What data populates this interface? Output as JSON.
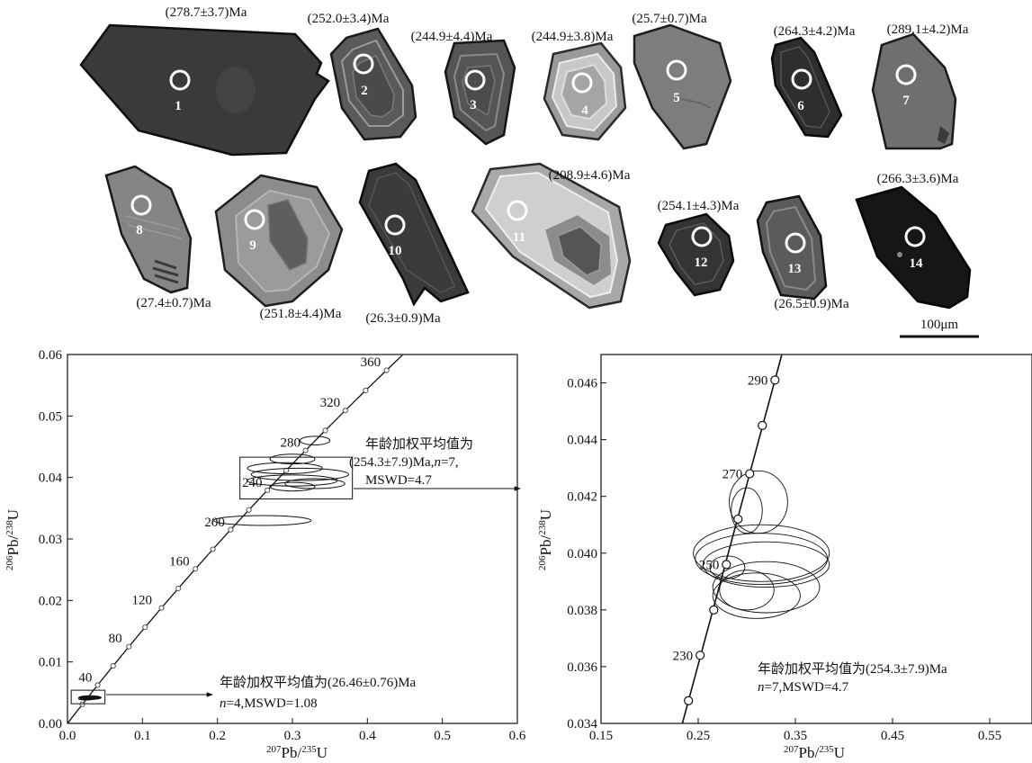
{
  "panel_a": {
    "grains": [
      {
        "num": "1",
        "age": "(278.7±3.7)Ma",
        "fill": "#3a3a3a",
        "spot": "dark"
      },
      {
        "num": "2",
        "age": "(252.0±3.4)Ma",
        "fill": "#5a5a5a",
        "spot": "mid"
      },
      {
        "num": "3",
        "age": "(244.9±4.4)Ma",
        "fill": "#555555",
        "spot": "mid"
      },
      {
        "num": "4",
        "age": "(244.9±3.8)Ma",
        "fill": "#9a9a9a",
        "spot": "bright"
      },
      {
        "num": "5",
        "age": "(25.7±0.7)Ma",
        "fill": "#7d7d7d",
        "spot": "mid"
      },
      {
        "num": "6",
        "age": "(264.3±4.2)Ma",
        "fill": "#2e2e2e",
        "spot": "dark"
      },
      {
        "num": "7",
        "age": "(289.1±4.2)Ma",
        "fill": "#6f6f6f",
        "spot": "mid"
      },
      {
        "num": "8",
        "age": "(27.4±0.7)Ma",
        "fill": "#858585",
        "spot": "mid"
      },
      {
        "num": "9",
        "age": "(251.8±4.4)Ma",
        "fill": "#8c8c8c",
        "spot": "mid"
      },
      {
        "num": "10",
        "age": "(26.3±0.9)Ma",
        "fill": "#3b3b3b",
        "spot": "dark"
      },
      {
        "num": "11",
        "age": "(208.9±4.6)Ma",
        "fill": "#a8a8a8",
        "spot": "bright"
      },
      {
        "num": "12",
        "age": "(254.1±4.3)Ma",
        "fill": "#343434",
        "spot": "dark"
      },
      {
        "num": "13",
        "age": "(26.5±0.9)Ma",
        "fill": "#5b5b5b",
        "spot": "mid"
      },
      {
        "num": "14",
        "age": "(266.3±3.6)Ma",
        "fill": "#161616",
        "spot": "dark"
      }
    ],
    "scale_bar_label": "100μm"
  },
  "chart_data": [
    {
      "type": "scatter",
      "name": "concordia-full",
      "xlabel_sup": "207",
      "xlabel_main": "Pb/",
      "xlabel_sup2": "235",
      "xlabel_end": "U",
      "ylabel_sup": "206",
      "ylabel_main": "Pb/",
      "ylabel_sup2": "238",
      "ylabel_end": "U",
      "xlim": [
        0,
        0.6
      ],
      "ylim": [
        0,
        0.06
      ],
      "xticks": [
        "0.0",
        "0.1",
        "0.2",
        "0.3",
        "0.4",
        "0.5",
        "0.6"
      ],
      "yticks": [
        "0.00",
        "0.01",
        "0.02",
        "0.03",
        "0.04",
        "0.05",
        "0.06"
      ],
      "concordia_age_labels": [
        {
          "age": "40",
          "x": 0.04,
          "y": 0.0062
        },
        {
          "age": "80",
          "x": 0.08,
          "y": 0.0126
        },
        {
          "age": "120",
          "x": 0.12,
          "y": 0.0188
        },
        {
          "age": "160",
          "x": 0.17,
          "y": 0.0251
        },
        {
          "age": "200",
          "x": 0.217,
          "y": 0.0315
        },
        {
          "age": "240",
          "x": 0.267,
          "y": 0.0379
        },
        {
          "age": "280",
          "x": 0.318,
          "y": 0.0444
        },
        {
          "age": "320",
          "x": 0.371,
          "y": 0.0509
        },
        {
          "age": "360",
          "x": 0.425,
          "y": 0.0575
        }
      ],
      "ellipses": [
        {
          "x": 0.33,
          "y": 0.046,
          "rx": 0.02,
          "ry": 0.0007
        },
        {
          "x": 0.3,
          "y": 0.043,
          "rx": 0.03,
          "ry": 0.0008
        },
        {
          "x": 0.29,
          "y": 0.0415,
          "rx": 0.05,
          "ry": 0.0009
        },
        {
          "x": 0.31,
          "y": 0.0405,
          "rx": 0.065,
          "ry": 0.001
        },
        {
          "x": 0.3,
          "y": 0.0395,
          "rx": 0.06,
          "ry": 0.0009
        },
        {
          "x": 0.33,
          "y": 0.039,
          "rx": 0.04,
          "ry": 0.0008
        },
        {
          "x": 0.3,
          "y": 0.0385,
          "rx": 0.03,
          "ry": 0.0007
        },
        {
          "x": 0.26,
          "y": 0.033,
          "rx": 0.065,
          "ry": 0.0008
        },
        {
          "x": 0.03,
          "y": 0.0042,
          "rx": 0.015,
          "ry": 0.0003
        },
        {
          "x": 0.025,
          "y": 0.004,
          "rx": 0.01,
          "ry": 0.0002
        }
      ],
      "box_upper": {
        "x0": 0.23,
        "x1": 0.38,
        "y0": 0.0365,
        "y1": 0.0433
      },
      "box_lower": {
        "x0": 0.005,
        "x1": 0.05,
        "y0": 0.0032,
        "y1": 0.0054
      },
      "annotation_upper": [
        "年龄加权平均值为",
        "(254.3±7.9)Ma,",
        "n",
        "=7,",
        "MSWD=4.7"
      ],
      "annotation_lower": [
        "年龄加权平均值为(26.46±0.76)Ma",
        "n",
        "=4,MSWD=1.08"
      ]
    },
    {
      "type": "scatter",
      "name": "concordia-zoom",
      "xlabel_sup": "207",
      "xlabel_main": "Pb/",
      "xlabel_sup2": "235",
      "xlabel_end": "U",
      "ylabel_sup": "206",
      "ylabel_main": "Pb/",
      "ylabel_sup2": "238",
      "ylabel_end": "U",
      "xlim": [
        0.15,
        0.6
      ],
      "ylim": [
        0.034,
        0.047
      ],
      "xticks": [
        {
          "v": 0.15,
          "t": "0.15"
        },
        {
          "v": 0.25,
          "t": "0.25"
        },
        {
          "v": 0.35,
          "t": "0.35"
        },
        {
          "v": 0.45,
          "t": "0.45"
        },
        {
          "v": 0.55,
          "t": "0.55"
        }
      ],
      "yticks": [
        {
          "v": 0.034,
          "t": "0.034"
        },
        {
          "v": 0.036,
          "t": "0.036"
        },
        {
          "v": 0.038,
          "t": "0.038"
        },
        {
          "v": 0.04,
          "t": "0.040"
        },
        {
          "v": 0.042,
          "t": "0.042"
        },
        {
          "v": 0.044,
          "t": "0.044"
        },
        {
          "v": 0.046,
          "t": "0.046"
        }
      ],
      "concordia_points": [
        {
          "x": 0.24,
          "y": 0.0348,
          "label": ""
        },
        {
          "x": 0.252,
          "y": 0.0364,
          "label": "230"
        },
        {
          "x": 0.266,
          "y": 0.038,
          "label": ""
        },
        {
          "x": 0.279,
          "y": 0.0396,
          "label": "250"
        },
        {
          "x": 0.291,
          "y": 0.0412,
          "label": ""
        },
        {
          "x": 0.303,
          "y": 0.0428,
          "label": "270"
        },
        {
          "x": 0.316,
          "y": 0.0445,
          "label": ""
        },
        {
          "x": 0.329,
          "y": 0.0461,
          "label": "290"
        }
      ],
      "ellipses": [
        {
          "x": 0.312,
          "y": 0.0418,
          "rx": 0.03,
          "ry": 0.0011
        },
        {
          "x": 0.3,
          "y": 0.0415,
          "rx": 0.016,
          "ry": 0.0008
        },
        {
          "x": 0.315,
          "y": 0.04,
          "rx": 0.07,
          "ry": 0.001
        },
        {
          "x": 0.315,
          "y": 0.0398,
          "rx": 0.068,
          "ry": 0.0009
        },
        {
          "x": 0.32,
          "y": 0.0396,
          "rx": 0.065,
          "ry": 0.0008
        },
        {
          "x": 0.28,
          "y": 0.0395,
          "rx": 0.018,
          "ry": 0.0004
        },
        {
          "x": 0.32,
          "y": 0.0388,
          "rx": 0.055,
          "ry": 0.0009
        },
        {
          "x": 0.31,
          "y": 0.0385,
          "rx": 0.045,
          "ry": 0.0008
        },
        {
          "x": 0.3,
          "y": 0.0387,
          "rx": 0.028,
          "ry": 0.0007
        }
      ],
      "annotation": [
        "年龄加权平均值为(254.3±7.9)Ma",
        "n",
        "=7,MSWD=4.7"
      ]
    }
  ]
}
